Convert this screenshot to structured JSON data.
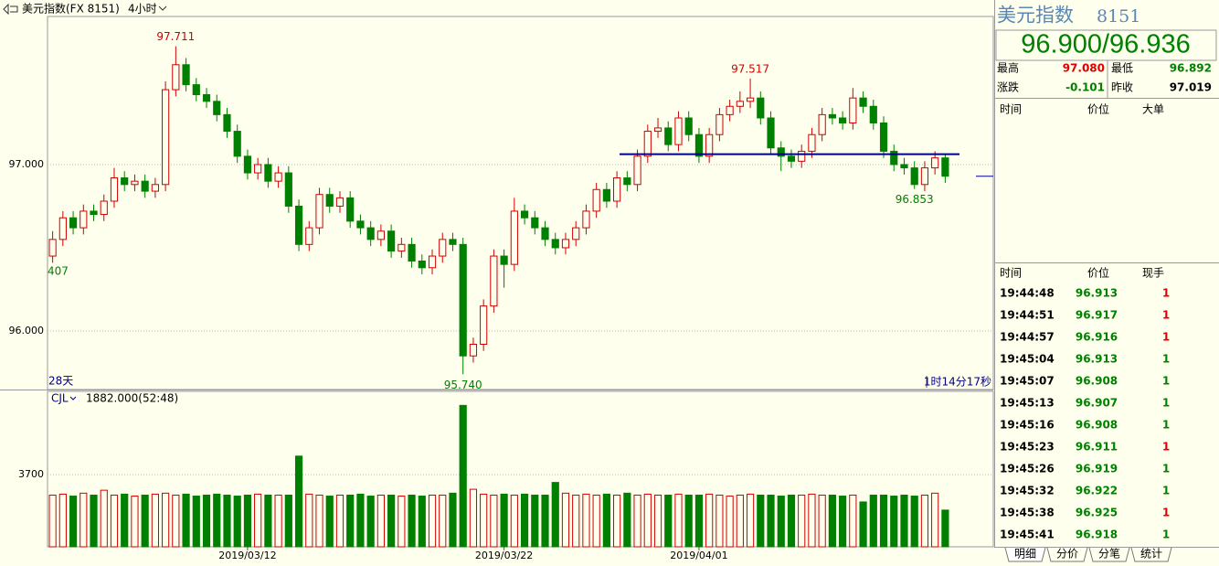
{
  "header": {
    "symbol": "美元指数(FX 8151)",
    "period": "4小时"
  },
  "chart_data": [
    {
      "type": "candlestick",
      "up_color": "#d00000",
      "down_color": "#008000",
      "categories": [
        null,
        null,
        null,
        null,
        null,
        null,
        null,
        null,
        null,
        null,
        null,
        null,
        null,
        null,
        null,
        null,
        null,
        null,
        null,
        "2019/03/12",
        null,
        null,
        null,
        null,
        null,
        null,
        null,
        null,
        null,
        null,
        null,
        null,
        null,
        null,
        null,
        null,
        null,
        null,
        null,
        null,
        null,
        null,
        null,
        null,
        "2019/03/22",
        null,
        null,
        null,
        null,
        null,
        null,
        null,
        null,
        null,
        null,
        null,
        null,
        null,
        null,
        null,
        null,
        null,
        null,
        "2019/04/01",
        null,
        null,
        null,
        null,
        null,
        null,
        null,
        null,
        null,
        null,
        null,
        null,
        null,
        null,
        null,
        null,
        null,
        null,
        null,
        null,
        null,
        null,
        null,
        null
      ],
      "open": [
        96.45,
        96.55,
        96.68,
        96.62,
        96.72,
        96.7,
        96.78,
        96.92,
        96.88,
        96.9,
        96.84,
        96.88,
        97.45,
        97.6,
        97.48,
        97.42,
        97.38,
        97.3,
        97.2,
        97.05,
        96.95,
        97.0,
        96.9,
        96.95,
        96.75,
        96.52,
        96.62,
        96.82,
        96.75,
        96.8,
        96.66,
        96.62,
        96.55,
        96.6,
        96.48,
        96.52,
        96.42,
        96.38,
        96.45,
        96.55,
        96.52,
        95.85,
        95.92,
        96.15,
        96.45,
        96.4,
        96.72,
        96.68,
        96.62,
        96.55,
        96.5,
        96.55,
        96.62,
        96.72,
        96.85,
        96.78,
        96.92,
        96.88,
        97.05,
        97.2,
        97.22,
        97.12,
        97.28,
        97.18,
        97.05,
        97.18,
        97.3,
        97.35,
        97.38,
        97.4,
        97.28,
        97.1,
        97.05,
        97.02,
        97.08,
        97.18,
        97.3,
        97.28,
        97.25,
        97.4,
        97.35,
        97.25,
        97.08,
        97.0,
        96.98,
        96.88,
        96.98,
        97.04
      ],
      "high": [
        96.6,
        96.72,
        96.72,
        96.76,
        96.76,
        96.82,
        96.98,
        96.96,
        96.94,
        96.94,
        96.92,
        97.5,
        97.711,
        97.64,
        97.52,
        97.46,
        97.42,
        97.34,
        97.24,
        97.09,
        97.04,
        97.04,
        96.99,
        96.99,
        96.79,
        96.66,
        96.86,
        96.86,
        96.84,
        96.84,
        96.7,
        96.66,
        96.64,
        96.64,
        96.56,
        96.56,
        96.46,
        96.49,
        96.59,
        96.59,
        96.56,
        95.96,
        96.19,
        96.49,
        96.49,
        96.8,
        96.76,
        96.72,
        96.66,
        96.59,
        96.59,
        96.66,
        96.76,
        96.89,
        96.89,
        96.96,
        96.96,
        97.09,
        97.24,
        97.28,
        97.26,
        97.32,
        97.32,
        97.22,
        97.22,
        97.34,
        97.39,
        97.44,
        97.517,
        97.44,
        97.32,
        97.14,
        97.09,
        97.12,
        97.22,
        97.34,
        97.34,
        97.32,
        97.46,
        97.44,
        97.39,
        97.29,
        97.12,
        97.04,
        97.02,
        97.02,
        97.08,
        97.06
      ],
      "low": [
        96.41,
        96.51,
        96.58,
        96.58,
        96.66,
        96.66,
        96.74,
        96.84,
        96.84,
        96.8,
        96.8,
        96.84,
        97.41,
        97.44,
        97.38,
        97.34,
        97.26,
        97.16,
        97.01,
        96.91,
        96.91,
        96.86,
        96.86,
        96.71,
        96.48,
        96.48,
        96.58,
        96.71,
        96.71,
        96.62,
        96.58,
        96.51,
        96.51,
        96.44,
        96.44,
        96.38,
        96.34,
        96.34,
        96.41,
        96.48,
        95.74,
        95.81,
        95.88,
        96.11,
        96.26,
        96.36,
        96.64,
        96.58,
        96.51,
        96.46,
        96.46,
        96.51,
        96.58,
        96.68,
        96.74,
        96.74,
        96.84,
        96.84,
        97.01,
        97.16,
        97.08,
        97.08,
        97.14,
        97.01,
        97.01,
        97.14,
        97.26,
        97.31,
        97.34,
        97.24,
        97.06,
        96.96,
        96.98,
        96.98,
        97.04,
        97.14,
        97.24,
        97.21,
        97.21,
        97.31,
        97.21,
        97.04,
        96.96,
        96.94,
        96.853,
        96.84,
        96.94,
        96.89
      ],
      "close": [
        96.55,
        96.68,
        96.62,
        96.72,
        96.7,
        96.78,
        96.92,
        96.88,
        96.9,
        96.84,
        96.88,
        97.45,
        97.6,
        97.48,
        97.42,
        97.38,
        97.3,
        97.2,
        97.05,
        96.95,
        97.0,
        96.9,
        96.95,
        96.75,
        96.52,
        96.62,
        96.82,
        96.75,
        96.8,
        96.66,
        96.62,
        96.55,
        96.6,
        96.48,
        96.52,
        96.42,
        96.38,
        96.45,
        96.55,
        96.52,
        95.85,
        95.92,
        96.15,
        96.45,
        96.4,
        96.72,
        96.68,
        96.62,
        96.55,
        96.5,
        96.55,
        96.62,
        96.72,
        96.85,
        96.78,
        96.92,
        96.88,
        97.05,
        97.2,
        97.22,
        97.12,
        97.28,
        97.18,
        97.05,
        97.18,
        97.3,
        97.35,
        97.38,
        97.4,
        97.28,
        97.1,
        97.05,
        97.02,
        97.08,
        97.18,
        97.3,
        97.28,
        97.25,
        97.4,
        97.35,
        97.25,
        97.08,
        97.0,
        96.98,
        96.88,
        96.98,
        97.04,
        96.93
      ],
      "ylim": [
        95.648,
        97.89
      ],
      "yticks": [
        {
          "value": 96,
          "label": "96.000"
        },
        {
          "value": 97,
          "label": "97.000"
        }
      ],
      "grid": true,
      "annotations": [
        {
          "value": 97.711,
          "label": "97.711"
        },
        {
          "value": 97.517,
          "label": "97.517"
        },
        {
          "value": 95.74,
          "label": "95.740"
        },
        {
          "value": 96.853,
          "label": "96.853"
        }
      ],
      "reference_line": {
        "value": 97.062,
        "color": "#00008b"
      },
      "left_label": "407",
      "range_label": "28天",
      "countdown": "1时14分17秒"
    },
    {
      "type": "bar",
      "title": "CJL",
      "subtitle": "1882.000(52:48)",
      "values": [
        2650,
        2700,
        2600,
        2750,
        2650,
        2900,
        2650,
        2700,
        2600,
        2650,
        2700,
        2750,
        2650,
        2700,
        2600,
        2650,
        2700,
        2650,
        2600,
        2650,
        2700,
        2650,
        2650,
        2650,
        4650,
        2700,
        2650,
        2600,
        2650,
        2650,
        2700,
        2600,
        2650,
        2650,
        2600,
        2650,
        2600,
        2650,
        2650,
        2750,
        7250,
        2950,
        2700,
        2650,
        2700,
        2650,
        2700,
        2650,
        2650,
        3300,
        2750,
        2650,
        2700,
        2650,
        2700,
        2650,
        2750,
        2650,
        2700,
        2650,
        2650,
        2700,
        2650,
        2650,
        2700,
        2650,
        2600,
        2650,
        2700,
        2650,
        2650,
        2600,
        2650,
        2650,
        2700,
        2650,
        2650,
        2600,
        2650,
        2300,
        2650,
        2650,
        2600,
        2650,
        2600,
        2650,
        2750,
        1882
      ],
      "ylim": [
        0,
        7970
      ],
      "yticks": [
        3700
      ],
      "grid": true,
      "up_color": "#d00000",
      "down_color": "#008000"
    }
  ],
  "quote": {
    "name": "美元指数",
    "code": "8151",
    "price": "96.900/96.936",
    "stats": [
      {
        "label": "最高",
        "value": "97.080",
        "color": "#e00000"
      },
      {
        "label": "最低",
        "value": "96.892",
        "color": "#008000"
      },
      {
        "label": "涨跌",
        "value": "-0.101",
        "color": "#008000"
      },
      {
        "label": "昨收",
        "value": "97.019",
        "color": "#000000"
      }
    ]
  },
  "big_orders": {
    "headers": [
      "时间",
      "价位",
      "大单"
    ]
  },
  "ticks": {
    "headers": [
      "时间",
      "价位",
      "现手"
    ],
    "rows": [
      {
        "time": "19:44:48",
        "price": "96.913",
        "volume": "1",
        "color": "#e00000"
      },
      {
        "time": "19:44:51",
        "price": "96.917",
        "volume": "1",
        "color": "#e00000"
      },
      {
        "time": "19:44:57",
        "price": "96.916",
        "volume": "1",
        "color": "#e00000"
      },
      {
        "time": "19:45:04",
        "price": "96.913",
        "volume": "1",
        "color": "#008000"
      },
      {
        "time": "19:45:07",
        "price": "96.908",
        "volume": "1",
        "color": "#008000"
      },
      {
        "time": "19:45:13",
        "price": "96.907",
        "volume": "1",
        "color": "#008000"
      },
      {
        "time": "19:45:16",
        "price": "96.908",
        "volume": "1",
        "color": "#008000"
      },
      {
        "time": "19:45:23",
        "price": "96.911",
        "volume": "1",
        "color": "#e00000"
      },
      {
        "time": "19:45:26",
        "price": "96.919",
        "volume": "1",
        "color": "#008000"
      },
      {
        "time": "19:45:32",
        "price": "96.922",
        "volume": "1",
        "color": "#008000"
      },
      {
        "time": "19:45:38",
        "price": "96.925",
        "volume": "1",
        "color": "#e00000"
      },
      {
        "time": "19:45:41",
        "price": "96.918",
        "volume": "1",
        "color": "#008000"
      }
    ]
  },
  "tabs": [
    "明细",
    "分价",
    "分笔",
    "统计"
  ]
}
